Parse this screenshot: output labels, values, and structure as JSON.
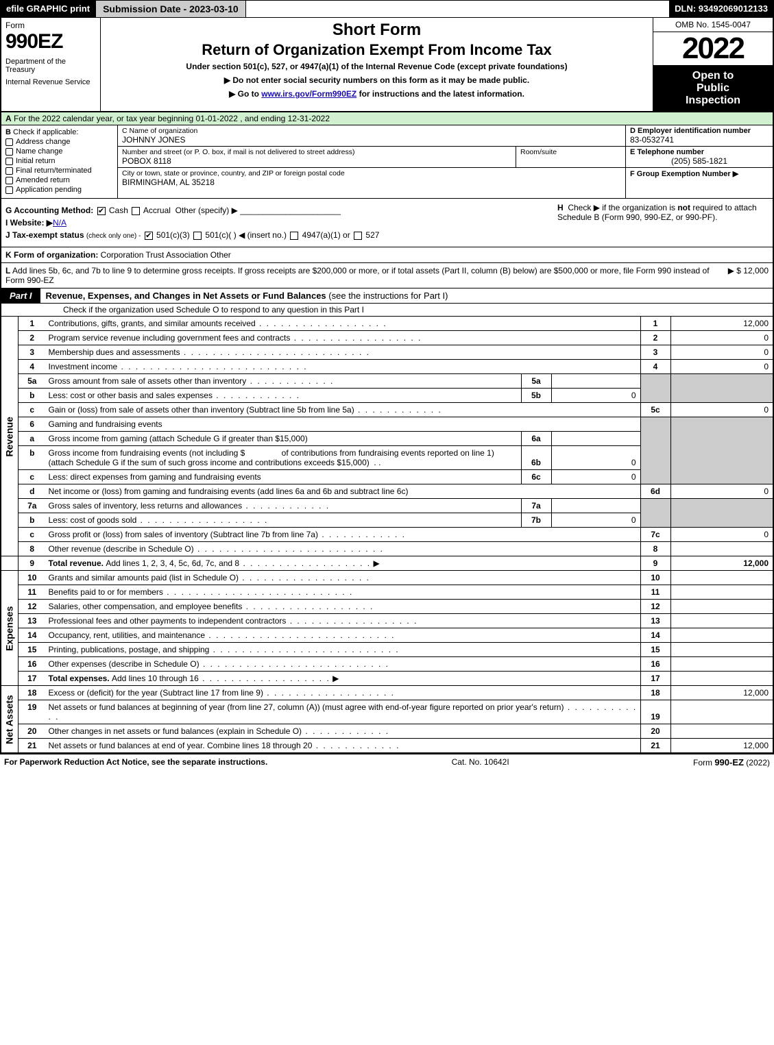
{
  "colors": {
    "black": "#000000",
    "white": "#ffffff",
    "lightgreen_header": "#d0f0d0",
    "shade_gray": "#cccccc",
    "link": "#1a0dab"
  },
  "top_bar": {
    "efile": "efile GRAPHIC print",
    "submission": "Submission Date - 2023-03-10",
    "dln": "DLN: 93492069012133"
  },
  "header": {
    "form_label": "Form",
    "form_number": "990EZ",
    "dept1": "Department of the Treasury",
    "dept2": "Internal Revenue Service",
    "short_form": "Short Form",
    "return_title": "Return of Organization Exempt From Income Tax",
    "under_section": "Under section 501(c), 527, or 4947(a)(1) of the Internal Revenue Code (except private foundations)",
    "do_not": "▶ Do not enter social security numbers on this form as it may be made public.",
    "go_to_pre": "▶ Go to ",
    "go_to_link": "www.irs.gov/Form990EZ",
    "go_to_post": " for instructions and the latest information.",
    "omb": "OMB No. 1545-0047",
    "year": "2022",
    "open_l1": "Open to",
    "open_l2": "Public",
    "open_l3": "Inspection"
  },
  "section_a": {
    "label": "A",
    "text": "For the 2022 calendar year, or tax year beginning 01-01-2022 , and ending 12-31-2022"
  },
  "section_b": {
    "label": "B",
    "intro": "Check if applicable:",
    "items": [
      "Address change",
      "Name change",
      "Initial return",
      "Final return/terminated",
      "Amended return",
      "Application pending"
    ]
  },
  "section_c": {
    "name_lbl": "C Name of organization",
    "name_val": "JOHNNY JONES",
    "street_lbl": "Number and street (or P. O. box, if mail is not delivered to street address)",
    "street_val": "POBOX 8118",
    "room_lbl": "Room/suite",
    "city_lbl": "City or town, state or province, country, and ZIP or foreign postal code",
    "city_val": "BIRMINGHAM, AL 35218"
  },
  "section_de": {
    "d_lbl": "D Employer identification number",
    "d_val": "83-0532741",
    "e_lbl": "E Telephone number",
    "e_val": "(205) 585-1821",
    "f_lbl": "F Group Exemption Number  ▶"
  },
  "section_g": {
    "label": "G Accounting Method:",
    "cash": "Cash",
    "accrual": "Accrual",
    "other": "Other (specify) ▶"
  },
  "section_h": {
    "label": "H",
    "text1": "Check ▶",
    "text2": "if the organization is ",
    "not": "not",
    "text3": " required to attach Schedule B (Form 990, 990-EZ, or 990-PF)."
  },
  "section_i": {
    "label": "I Website: ▶",
    "val": "N/A"
  },
  "section_j": {
    "label": "J Tax-exempt status",
    "sub": "(check only one) -",
    "o501c3": "501(c)(3)",
    "o501c": "501(c)(   ) ◀ (insert no.)",
    "o4947": "4947(a)(1) or",
    "o527": "527"
  },
  "section_k": {
    "label": "K Form of organization:",
    "corp": "Corporation",
    "trust": "Trust",
    "assoc": "Association",
    "other": "Other"
  },
  "section_l": {
    "label": "L",
    "text": "Add lines 5b, 6c, and 7b to line 9 to determine gross receipts. If gross receipts are $200,000 or more, or if total assets (Part II, column (B) below) are $500,000 or more, file Form 990 instead of Form 990-EZ",
    "arrow_amount": "▶ $ 12,000"
  },
  "part1": {
    "tab": "Part I",
    "title": "Revenue, Expenses, and Changes in Net Assets or Fund Balances",
    "title_note": "(see the instructions for Part I)",
    "subline": "Check if the organization used Schedule O to respond to any question in this Part I",
    "sub_box_checked": false
  },
  "revenue_label": "Revenue",
  "expenses_label": "Expenses",
  "netassets_label": "Net Assets",
  "lines": {
    "1": {
      "num": "1",
      "desc": "Contributions, gifts, grants, and similar amounts received",
      "rn": "1",
      "rv": "12,000"
    },
    "2": {
      "num": "2",
      "desc": "Program service revenue including government fees and contracts",
      "rn": "2",
      "rv": "0"
    },
    "3": {
      "num": "3",
      "desc": "Membership dues and assessments",
      "rn": "3",
      "rv": "0"
    },
    "4": {
      "num": "4",
      "desc": "Investment income",
      "rn": "4",
      "rv": "0"
    },
    "5a": {
      "num": "5a",
      "desc": "Gross amount from sale of assets other than inventory",
      "mn": "5a",
      "mv": ""
    },
    "5b": {
      "num": "b",
      "desc": "Less: cost or other basis and sales expenses",
      "mn": "5b",
      "mv": "0"
    },
    "5c": {
      "num": "c",
      "desc": "Gain or (loss) from sale of assets other than inventory (Subtract line 5b from line 5a)",
      "rn": "5c",
      "rv": "0"
    },
    "6": {
      "num": "6",
      "desc": "Gaming and fundraising events"
    },
    "6a": {
      "num": "a",
      "desc": "Gross income from gaming (attach Schedule G if greater than $15,000)",
      "mn": "6a",
      "mv": ""
    },
    "6b": {
      "num": "b",
      "desc_pre": "Gross income from fundraising events (not including $",
      "desc_post": "of contributions from fundraising events reported on line 1) (attach Schedule G if the sum of such gross income and contributions exceeds $15,000)",
      "mn": "6b",
      "mv": "0"
    },
    "6c": {
      "num": "c",
      "desc": "Less: direct expenses from gaming and fundraising events",
      "mn": "6c",
      "mv": "0"
    },
    "6d": {
      "num": "d",
      "desc": "Net income or (loss) from gaming and fundraising events (add lines 6a and 6b and subtract line 6c)",
      "rn": "6d",
      "rv": "0"
    },
    "7a": {
      "num": "7a",
      "desc": "Gross sales of inventory, less returns and allowances",
      "mn": "7a",
      "mv": ""
    },
    "7b": {
      "num": "b",
      "desc": "Less: cost of goods sold",
      "mn": "7b",
      "mv": "0"
    },
    "7c": {
      "num": "c",
      "desc": "Gross profit or (loss) from sales of inventory (Subtract line 7b from line 7a)",
      "rn": "7c",
      "rv": "0"
    },
    "8": {
      "num": "8",
      "desc": "Other revenue (describe in Schedule O)",
      "rn": "8",
      "rv": ""
    },
    "9": {
      "num": "9",
      "desc": "Total revenue. ",
      "desc2": "Add lines 1, 2, 3, 4, 5c, 6d, 7c, and 8",
      "rn": "9",
      "rv": "12,000"
    },
    "10": {
      "num": "10",
      "desc": "Grants and similar amounts paid (list in Schedule O)",
      "rn": "10",
      "rv": ""
    },
    "11": {
      "num": "11",
      "desc": "Benefits paid to or for members",
      "rn": "11",
      "rv": ""
    },
    "12": {
      "num": "12",
      "desc": "Salaries, other compensation, and employee benefits",
      "rn": "12",
      "rv": ""
    },
    "13": {
      "num": "13",
      "desc": "Professional fees and other payments to independent contractors",
      "rn": "13",
      "rv": ""
    },
    "14": {
      "num": "14",
      "desc": "Occupancy, rent, utilities, and maintenance",
      "rn": "14",
      "rv": ""
    },
    "15": {
      "num": "15",
      "desc": "Printing, publications, postage, and shipping",
      "rn": "15",
      "rv": ""
    },
    "16": {
      "num": "16",
      "desc": "Other expenses (describe in Schedule O)",
      "rn": "16",
      "rv": ""
    },
    "17": {
      "num": "17",
      "desc": "Total expenses. ",
      "desc2": "Add lines 10 through 16",
      "rn": "17",
      "rv": ""
    },
    "18": {
      "num": "18",
      "desc": "Excess or (deficit) for the year (Subtract line 17 from line 9)",
      "rn": "18",
      "rv": "12,000"
    },
    "19": {
      "num": "19",
      "desc": "Net assets or fund balances at beginning of year (from line 27, column (A)) (must agree with end-of-year figure reported on prior year's return)",
      "rn": "19",
      "rv": ""
    },
    "20": {
      "num": "20",
      "desc": "Other changes in net assets or fund balances (explain in Schedule O)",
      "rn": "20",
      "rv": ""
    },
    "21": {
      "num": "21",
      "desc": "Net assets or fund balances at end of year. Combine lines 18 through 20",
      "rn": "21",
      "rv": "12,000"
    }
  },
  "footer": {
    "left": "For Paperwork Reduction Act Notice, see the separate instructions.",
    "center": "Cat. No. 10642I",
    "right_pre": "Form ",
    "right_form": "990-EZ",
    "right_post": " (2022)"
  }
}
